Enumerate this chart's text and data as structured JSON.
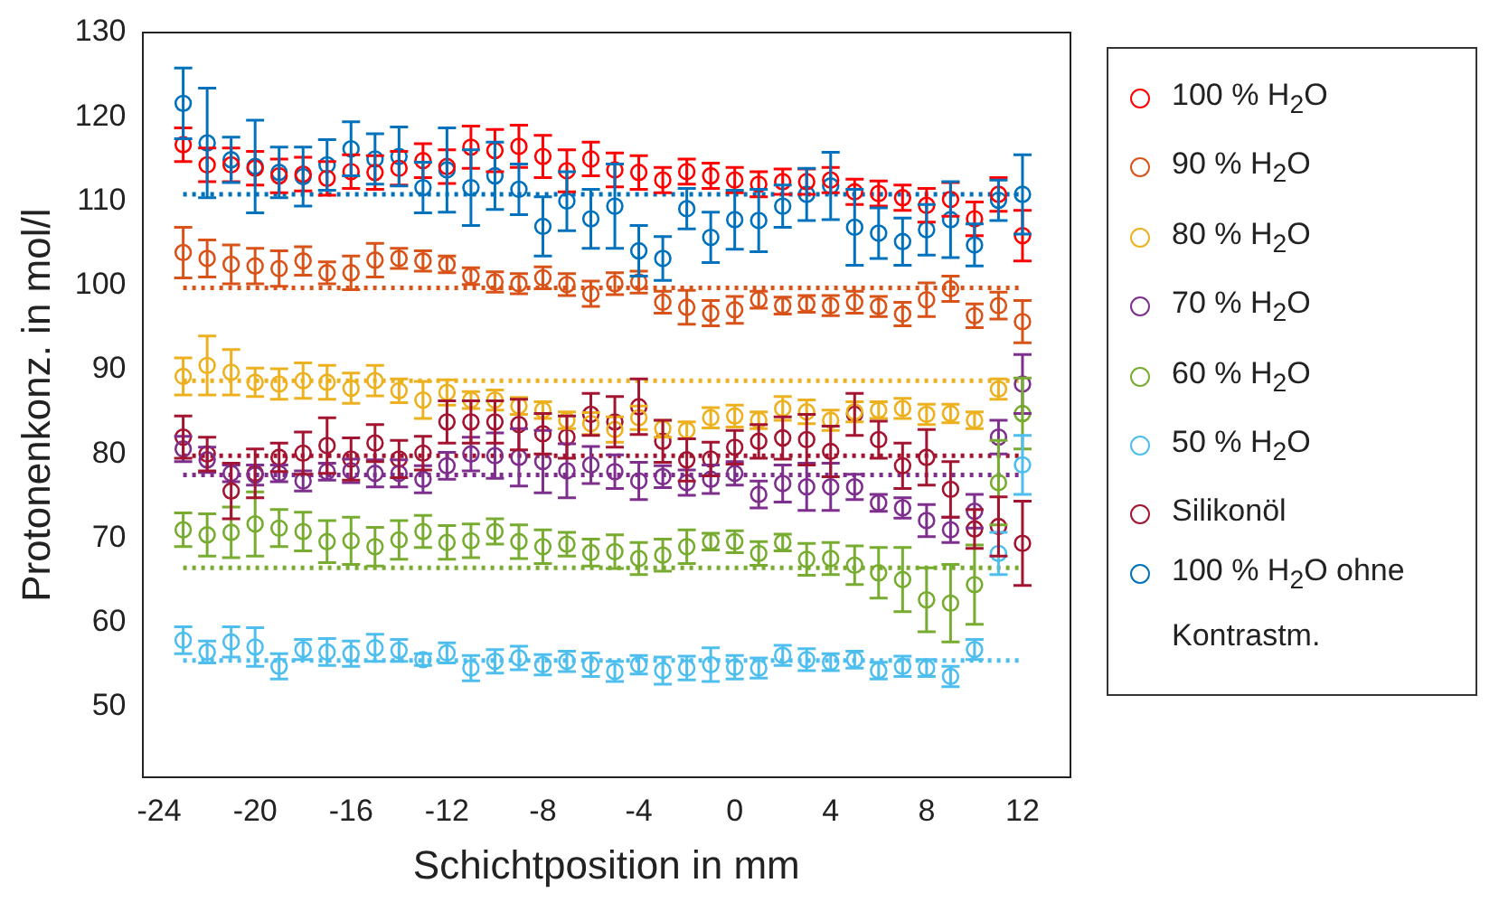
{
  "chart_data": {
    "type": "scatter",
    "xlabel": "Schichtposition in mm",
    "ylabel": "Protonenkonz. in mol/l",
    "marker": "circle",
    "legend": "right",
    "grid": false,
    "xlim": [
      -24.7,
      14
    ],
    "xticks": [
      -24,
      -20,
      -16,
      -12,
      -8,
      -4,
      0,
      4,
      8,
      12
    ],
    "ylim": [
      41.6,
      130
    ],
    "yticks": [
      50,
      60,
      70,
      80,
      90,
      100,
      110,
      120,
      130
    ],
    "x": [
      -23,
      -22,
      -21,
      -20,
      -19,
      -18,
      -17,
      -16,
      -15,
      -14,
      -13,
      -12,
      -11,
      -10,
      -9,
      -8,
      -7,
      -6,
      -5,
      -4,
      -3,
      -2,
      -1,
      0,
      1,
      2,
      3,
      4,
      5,
      6,
      7,
      8,
      9,
      10,
      11,
      12
    ],
    "series": [
      {
        "name": "100 % H$_{2}$O",
        "color": "#ff0000",
        "values": [
          116.7,
          114.3,
          114.3,
          113.9,
          113,
          113.2,
          112.7,
          113.5,
          113.4,
          113.9,
          114.8,
          114.1,
          116.4,
          116,
          116.5,
          115.3,
          113.6,
          115,
          113.7,
          113.4,
          112.5,
          113.5,
          113,
          112.5,
          112,
          112.3,
          112.3,
          112.5,
          111.1,
          110.9,
          110.4,
          109.5,
          110.2,
          107.9,
          110.8,
          105.9
        ],
        "errors": [
          2,
          2,
          2,
          2,
          2,
          2,
          2,
          2,
          2,
          2,
          2,
          2,
          2.5,
          2.5,
          2.5,
          2.5,
          2.5,
          2,
          2,
          2,
          1.5,
          1.5,
          1.5,
          1.5,
          1.5,
          1.5,
          1.5,
          1.5,
          1.5,
          1.5,
          1.5,
          2,
          2,
          2,
          2,
          3
        ]
      },
      {
        "name": "90 % H$_{2}$O",
        "color": "#d95319",
        "values": [
          103.9,
          103.2,
          102.5,
          102.3,
          102,
          102.9,
          101.5,
          101.5,
          103,
          103.2,
          102.9,
          102.5,
          101.1,
          100.4,
          100.2,
          100.9,
          100.1,
          99,
          100.2,
          100.4,
          98,
          97.4,
          96.7,
          97.1,
          98.3,
          97.6,
          97.8,
          97.6,
          98,
          97.5,
          96.6,
          98.3,
          99.6,
          96.4,
          97.6,
          95.7
        ],
        "errors": [
          3,
          2.2,
          2.3,
          2.1,
          2.1,
          1.7,
          1.3,
          2,
          2,
          1.2,
          1.2,
          1,
          1,
          1.2,
          1.2,
          1.3,
          1.3,
          1.5,
          1.3,
          1.3,
          1.3,
          2,
          1.5,
          1.6,
          1,
          1,
          1,
          1.2,
          1.3,
          1.2,
          1.4,
          2,
          1.5,
          1.4,
          1.6,
          2.5
        ]
      },
      {
        "name": "80 % H$_{2}$O",
        "color": "#edb120",
        "values": [
          89.2,
          90.5,
          89.7,
          88.5,
          88.3,
          88.7,
          88.5,
          87.8,
          88.7,
          87.5,
          86.4,
          87.3,
          86.4,
          86.4,
          85.7,
          85.2,
          84,
          83.6,
          82.9,
          84.3,
          83,
          82.8,
          84.3,
          84.5,
          84,
          85.4,
          85,
          84,
          85,
          85.2,
          85.4,
          84.7,
          84.8,
          84,
          87.7,
          null
        ],
        "errors": [
          2.2,
          3.5,
          2.7,
          1.7,
          1.8,
          2.1,
          2,
          1.8,
          1.8,
          1.4,
          2.2,
          1.5,
          1,
          1.2,
          1,
          1,
          1,
          1.3,
          1.5,
          1.4,
          1,
          1,
          1.2,
          1.3,
          1,
          1.4,
          1.4,
          1.2,
          1.2,
          1,
          1.2,
          1.2,
          1.1,
          1,
          1.2,
          null
        ]
      },
      {
        "name": "70 % H$_{2}$O",
        "color": "#7e2f8e",
        "values": [
          80.6,
          79.3,
          77.7,
          77.5,
          77.7,
          76.8,
          77.9,
          78,
          77.7,
          77.7,
          77,
          78.6,
          80,
          79.8,
          79.6,
          79.1,
          78,
          78.7,
          77.9,
          76.8,
          77.3,
          76.6,
          77,
          77.7,
          75.2,
          76.5,
          76.1,
          76.1,
          76.1,
          74.2,
          73.6,
          72.1,
          71,
          73.2,
          82,
          88.3
        ],
        "errors": [
          1.5,
          1.5,
          1,
          1.2,
          1,
          1.2,
          1,
          1.4,
          1.6,
          1.6,
          1.6,
          1.6,
          2,
          2.7,
          3.4,
          3.7,
          3.2,
          2.2,
          2,
          2.2,
          1.3,
          1.5,
          1.7,
          1.4,
          1.6,
          2.2,
          2.8,
          2.8,
          1.5,
          1,
          1.2,
          1.9,
          1.5,
          2,
          2,
          3.5
        ]
      },
      {
        "name": "60 % H$_{2}$O",
        "color": "#77ac30",
        "values": [
          71,
          70.4,
          70.7,
          71.7,
          71.2,
          70.8,
          69.6,
          69.7,
          69,
          69.8,
          70.8,
          69.5,
          69.7,
          70.8,
          69.6,
          69,
          69.3,
          68.3,
          68.4,
          67.6,
          68,
          69,
          69.6,
          69.6,
          68.2,
          69.5,
          67.5,
          67.6,
          66.8,
          65.9,
          65.1,
          62.7,
          62.3,
          64.5,
          76.6,
          84.8
        ],
        "errors": [
          2,
          2.5,
          3,
          3.8,
          2.2,
          2.3,
          2.5,
          2.8,
          2.3,
          2.3,
          1.9,
          2,
          2,
          1.5,
          2,
          2,
          1.4,
          1.6,
          2,
          1.9,
          1.9,
          2,
          1,
          1.3,
          1.4,
          1,
          1.9,
          1.9,
          2.3,
          3,
          3.8,
          3.8,
          4.6,
          4.7,
          5,
          4.2
        ]
      },
      {
        "name": "50 % H$_{2}$O",
        "color": "#4dbeee",
        "values": [
          57.9,
          56.5,
          57.7,
          57.1,
          54.8,
          56.8,
          56.5,
          56.3,
          57,
          56.7,
          55.6,
          56.4,
          54.6,
          55.4,
          55.8,
          55,
          55.4,
          55,
          54.2,
          55,
          54.3,
          54.6,
          55,
          54.7,
          54.6,
          56.1,
          55.6,
          55.3,
          55.6,
          54.3,
          54.8,
          54.6,
          53.6,
          56.8,
          68.2,
          78.7
        ],
        "errors": [
          1.6,
          1.3,
          1.8,
          2.3,
          1.5,
          1.2,
          1.6,
          1.5,
          1.6,
          1.3,
          0.7,
          1.2,
          1.5,
          1.4,
          1.4,
          1.2,
          1.2,
          1.4,
          1.2,
          1.1,
          1.6,
          1.4,
          2,
          1.4,
          1.2,
          1.2,
          1.3,
          1,
          1,
          1,
          1.2,
          1,
          1.2,
          1.2,
          2.5,
          3.5
        ]
      },
      {
        "name": "Silikonöl",
        "color": "#a2142f",
        "values": [
          82,
          80,
          75.6,
          77.7,
          79.6,
          80.1,
          81,
          79.4,
          81.3,
          79.4,
          80.1,
          83.8,
          83.8,
          83.8,
          83.5,
          82.4,
          82,
          84.7,
          83.8,
          85.6,
          81.5,
          79.3,
          79.4,
          80.8,
          81.5,
          81.9,
          81.7,
          80.3,
          84.7,
          81.7,
          78.6,
          79.6,
          75.8,
          71.1,
          71.4,
          69.4
        ],
        "errors": [
          2.5,
          2,
          3.3,
          2.9,
          1.7,
          2.5,
          3.3,
          2.5,
          2.2,
          2.2,
          2,
          2.5,
          2.5,
          2.5,
          3,
          2.4,
          2.5,
          2.5,
          3,
          3.3,
          2.5,
          2.5,
          2,
          2,
          2,
          2.5,
          3,
          3,
          2.5,
          2.2,
          2.7,
          3.3,
          3.3,
          2.3,
          3.5,
          5
        ]
      },
      {
        "name": "100 % H$_{2}$O ohne Kontrastm.",
        "color": "#0072bd",
        "values": [
          121.6,
          116.9,
          114.9,
          114.1,
          113.4,
          112.9,
          114.3,
          116.2,
          115,
          115.3,
          111.6,
          113.7,
          111.6,
          113,
          111.4,
          107,
          110,
          107.9,
          109.4,
          104.1,
          103.2,
          109.1,
          105.7,
          107.8,
          107.7,
          109.4,
          110.8,
          111.8,
          106.9,
          106.2,
          105.2,
          106.6,
          107.8,
          104.8,
          110.1,
          110.8
        ],
        "errors": [
          4.2,
          6.5,
          2.7,
          5.5,
          3,
          3.5,
          3,
          3.2,
          3,
          3.5,
          3,
          5,
          4.5,
          4,
          3,
          3.5,
          3.5,
          3.5,
          5,
          3,
          2.6,
          2.4,
          3,
          3.5,
          3.7,
          2.5,
          3.1,
          4,
          4.5,
          3,
          2.8,
          3,
          4.5,
          2.5,
          2.4,
          4.7
        ]
      }
    ],
    "ref_lines": [
      {
        "axis": "y",
        "value": 110.8,
        "color": "#0072bd",
        "line_style": "dotted"
      },
      {
        "axis": "y",
        "value": 99.7,
        "color": "#d95319",
        "line_style": "dotted"
      },
      {
        "axis": "y",
        "value": 88.7,
        "color": "#edb120",
        "line_style": "dotted"
      },
      {
        "axis": "y",
        "value": 79.8,
        "color": "#a2142f",
        "line_style": "dotted"
      },
      {
        "axis": "y",
        "value": 77.5,
        "color": "#7e2f8e",
        "line_style": "dotted"
      },
      {
        "axis": "y",
        "value": 66.5,
        "color": "#77ac30",
        "line_style": "dotted"
      },
      {
        "axis": "y",
        "value": 55.5,
        "color": "#4dbeee",
        "line_style": "dotted"
      }
    ]
  }
}
